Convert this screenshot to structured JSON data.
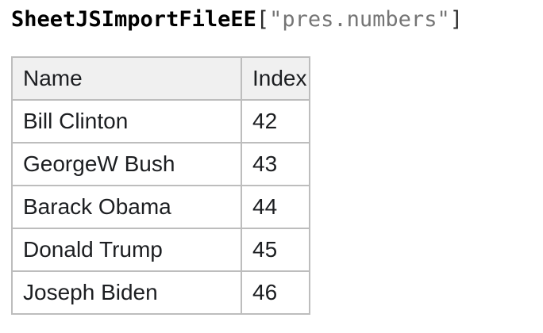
{
  "title": {
    "object_name": "SheetJSImportFileEE",
    "bracket_open": "[",
    "key_string": "\"pres.numbers\"",
    "bracket_close": "]"
  },
  "table": {
    "columns": [
      "Name",
      "Index"
    ],
    "rows": [
      {
        "name": "Bill Clinton",
        "index": "42"
      },
      {
        "name": "GeorgeW Bush",
        "index": "43"
      },
      {
        "name": "Barack Obama",
        "index": "44"
      },
      {
        "name": "Donald Trump",
        "index": "45"
      },
      {
        "name": "Joseph Biden",
        "index": "46"
      }
    ]
  },
  "colors": {
    "header_background": "#f0f0f0",
    "table_border": "#bdbdbd",
    "cell_text": "#1c1e21",
    "title_object": "#000000",
    "title_bracket": "#2a2a2a",
    "title_string": "#757575"
  }
}
